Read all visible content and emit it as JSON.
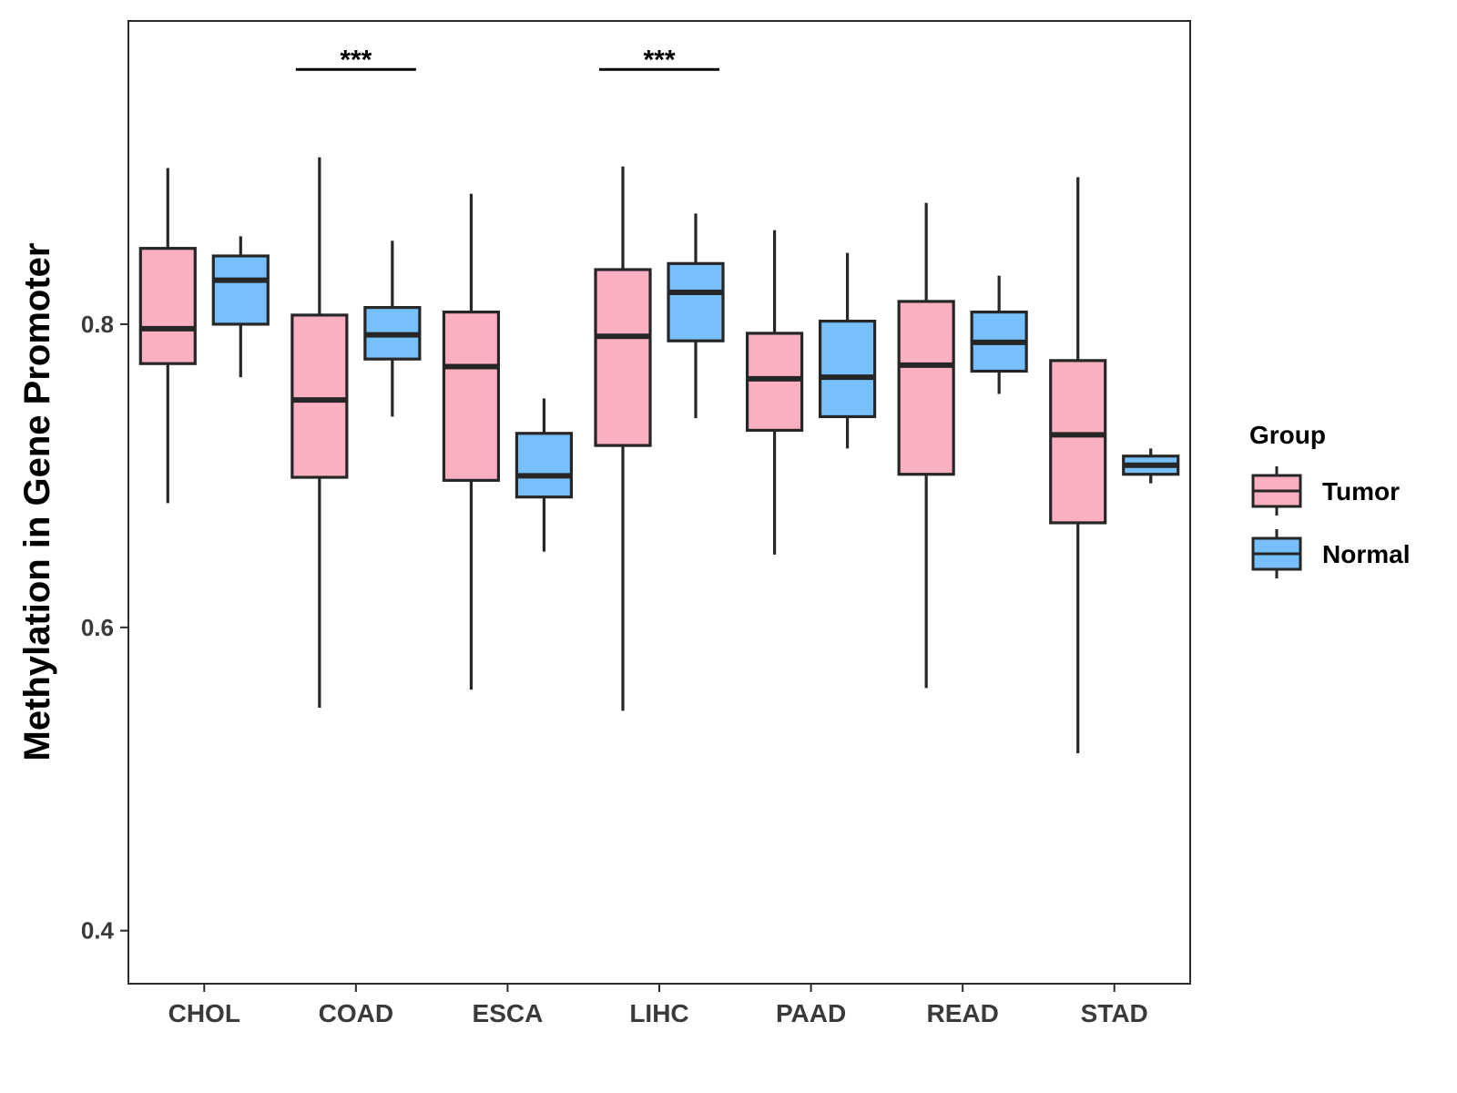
{
  "chart_data": {
    "type": "boxplot",
    "title": "",
    "xlabel": "",
    "ylabel": "Methylation in Gene Promoter",
    "ylim": [
      0.365,
      1.0
    ],
    "yticks": [
      0.4,
      0.6,
      0.8
    ],
    "ytick_labels": [
      "0.4",
      "0.6",
      "0.8"
    ],
    "categories": [
      "CHOL",
      "COAD",
      "ESCA",
      "LIHC",
      "PAAD",
      "READ",
      "STAD"
    ],
    "legend": {
      "title": "Group",
      "position": "right",
      "entries": [
        "Tumor",
        "Normal"
      ]
    },
    "colors": {
      "Tumor": "#fbb0c2",
      "Normal": "#77c0fb",
      "outline": "#262626"
    },
    "series": [
      {
        "name": "Tumor",
        "boxes": [
          {
            "whisker_low": 0.682,
            "q1": 0.774,
            "median": 0.797,
            "q3": 0.85,
            "whisker_high": 0.903
          },
          {
            "whisker_low": 0.547,
            "q1": 0.699,
            "median": 0.75,
            "q3": 0.806,
            "whisker_high": 0.91
          },
          {
            "whisker_low": 0.559,
            "q1": 0.697,
            "median": 0.772,
            "q3": 0.808,
            "whisker_high": 0.886
          },
          {
            "whisker_low": 0.545,
            "q1": 0.72,
            "median": 0.792,
            "q3": 0.836,
            "whisker_high": 0.904
          },
          {
            "whisker_low": 0.648,
            "q1": 0.73,
            "median": 0.764,
            "q3": 0.794,
            "whisker_high": 0.862
          },
          {
            "whisker_low": 0.56,
            "q1": 0.701,
            "median": 0.773,
            "q3": 0.815,
            "whisker_high": 0.88
          },
          {
            "whisker_low": 0.517,
            "q1": 0.669,
            "median": 0.727,
            "q3": 0.776,
            "whisker_high": 0.897
          }
        ]
      },
      {
        "name": "Normal",
        "boxes": [
          {
            "whisker_low": 0.765,
            "q1": 0.8,
            "median": 0.829,
            "q3": 0.845,
            "whisker_high": 0.858
          },
          {
            "whisker_low": 0.739,
            "q1": 0.777,
            "median": 0.793,
            "q3": 0.811,
            "whisker_high": 0.855
          },
          {
            "whisker_low": 0.65,
            "q1": 0.686,
            "median": 0.7,
            "q3": 0.728,
            "whisker_high": 0.751
          },
          {
            "whisker_low": 0.738,
            "q1": 0.789,
            "median": 0.821,
            "q3": 0.84,
            "whisker_high": 0.873
          },
          {
            "whisker_low": 0.718,
            "q1": 0.739,
            "median": 0.765,
            "q3": 0.802,
            "whisker_high": 0.847
          },
          {
            "whisker_low": 0.754,
            "q1": 0.769,
            "median": 0.788,
            "q3": 0.808,
            "whisker_high": 0.832
          },
          {
            "whisker_low": 0.695,
            "q1": 0.701,
            "median": 0.707,
            "q3": 0.713,
            "whisker_high": 0.718
          }
        ]
      }
    ],
    "annotations": [
      {
        "category": "COAD",
        "label": "***",
        "y": 0.968
      },
      {
        "category": "LIHC",
        "label": "***",
        "y": 0.968
      }
    ]
  }
}
